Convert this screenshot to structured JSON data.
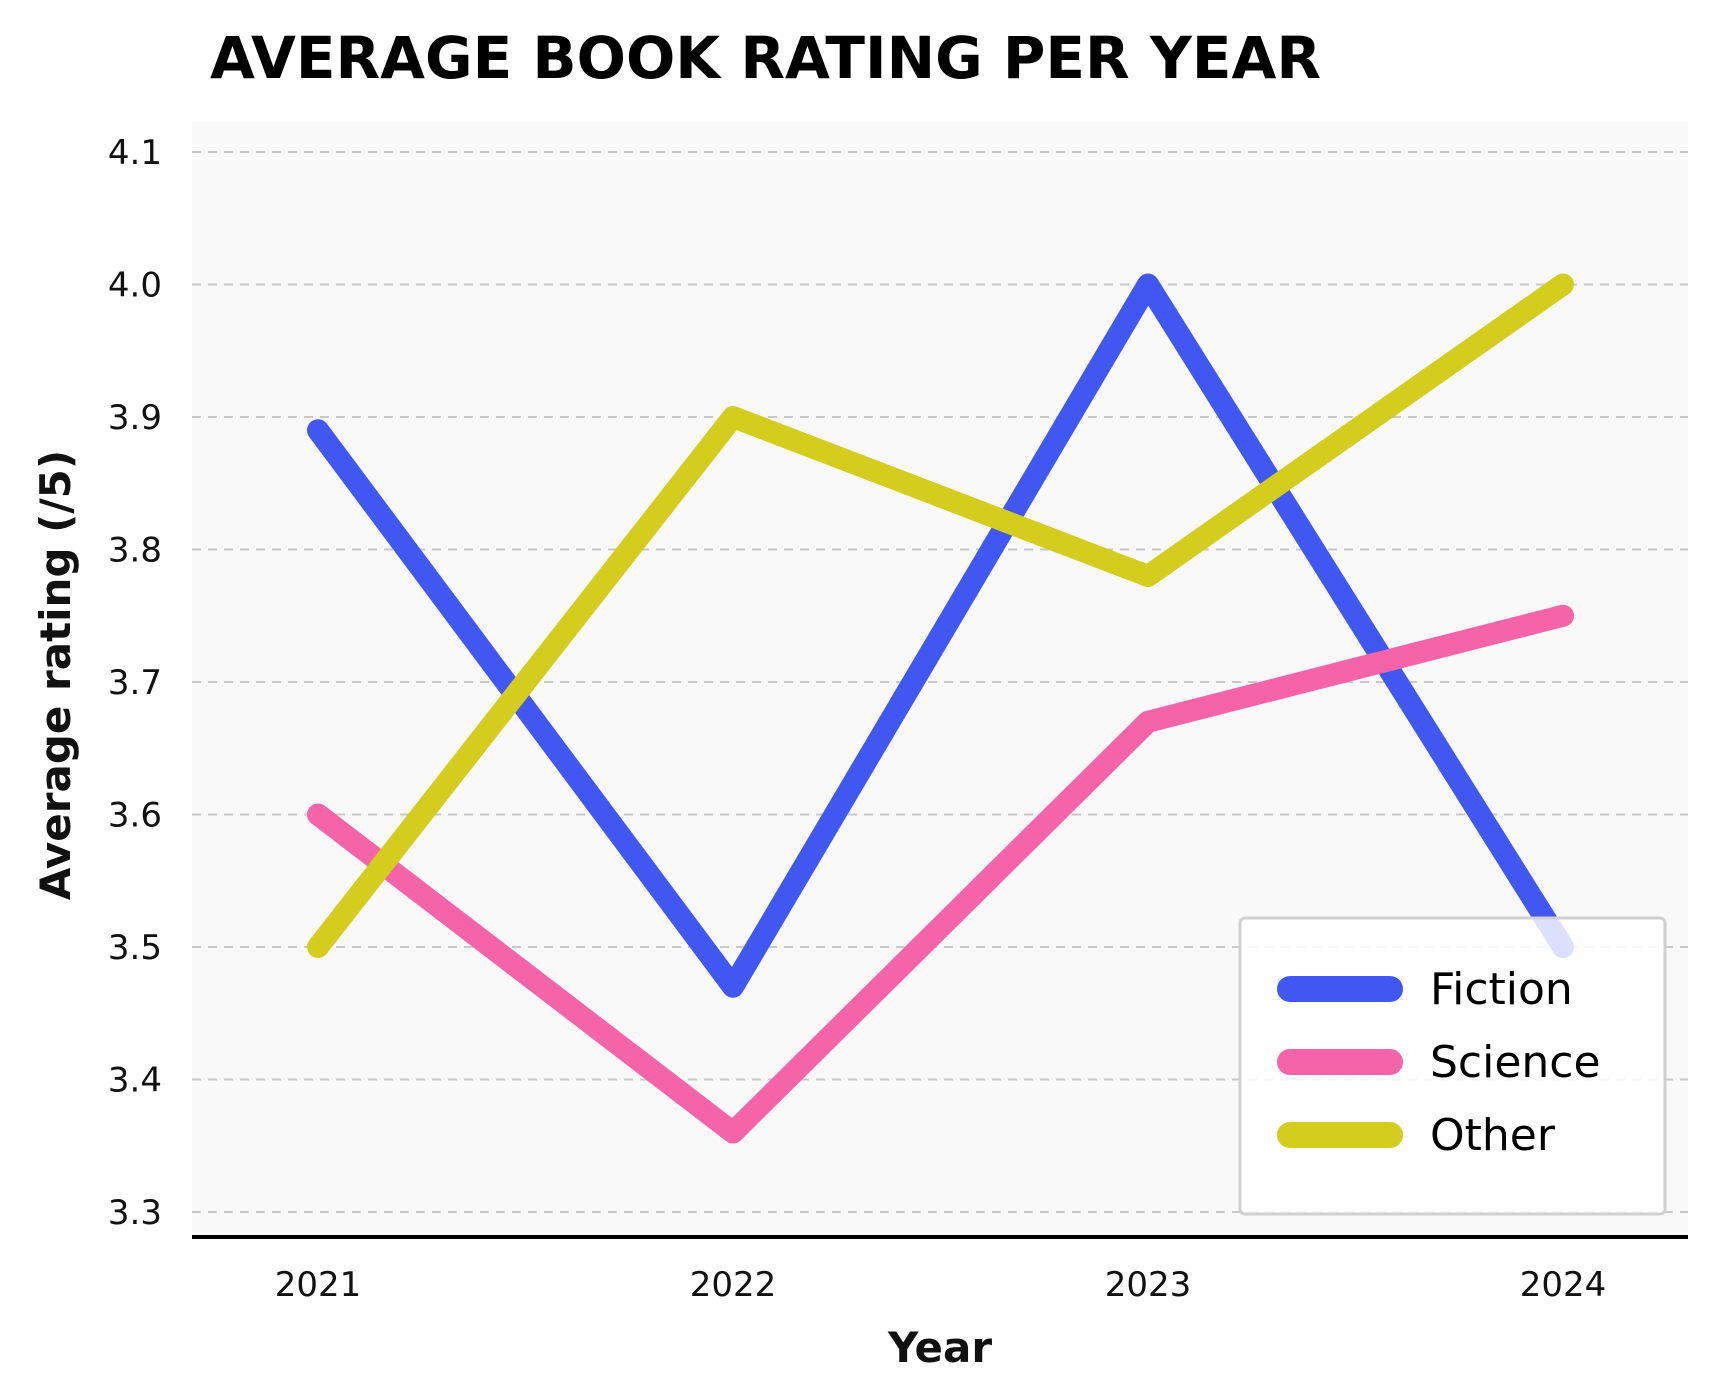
{
  "chart_data": {
    "type": "line",
    "title": "AVERAGE BOOK RATING PER YEAR",
    "xlabel": "Year",
    "ylabel": "Average rating (/5)",
    "categories": [
      "2021",
      "2022",
      "2023",
      "2024"
    ],
    "ylim": [
      3.3,
      4.1
    ],
    "yticks": [
      "4.1",
      "4.0",
      "3.9",
      "3.8",
      "3.7",
      "3.6",
      "3.5",
      "3.4",
      "3.3"
    ],
    "grid": "horizontal dashed",
    "legend_position": "bottom-right",
    "series": [
      {
        "name": "Fiction",
        "color": "#4057f2",
        "values": [
          3.89,
          3.47,
          4.0,
          3.5
        ]
      },
      {
        "name": "Science",
        "color": "#f564a9",
        "values": [
          3.6,
          3.36,
          3.67,
          3.75
        ]
      },
      {
        "name": "Other",
        "color": "#d4cd1e",
        "values": [
          3.5,
          3.9,
          3.78,
          4.0
        ]
      }
    ],
    "colors": {
      "plot_background": "#f9f9f9",
      "grid": "#c8c8c8",
      "axis": "#000000"
    }
  }
}
